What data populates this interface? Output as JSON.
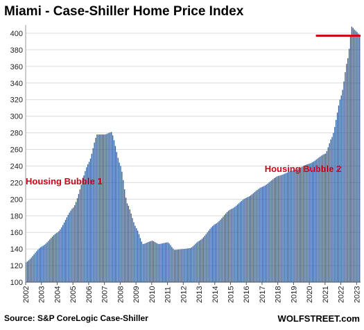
{
  "header": {
    "title": "Miami - Case-Shiller Home Price Index"
  },
  "footer": {
    "source": "Source: S&P CoreLogic Case-Shiller",
    "brand": "WOLFSTREET.com"
  },
  "colors": {
    "bar": "#2e5b96",
    "annotation": "#d0021b",
    "grid": "#dcdcdc"
  },
  "chart_data": {
    "type": "bar",
    "title": "Miami - Case-Shiller Home Price Index",
    "xlabel": "",
    "ylabel": "",
    "ylim": [
      100,
      410
    ],
    "yticks": [
      100,
      120,
      140,
      160,
      180,
      200,
      220,
      240,
      260,
      280,
      300,
      320,
      340,
      360,
      380,
      400
    ],
    "xticks": [
      "2002",
      "2003",
      "2004",
      "2005",
      "2006",
      "2007",
      "2008",
      "2009",
      "2010",
      "2011",
      "2012",
      "2013",
      "2014",
      "2015",
      "2016",
      "2017",
      "2018",
      "2019",
      "2020",
      "2021",
      "2022",
      "2023"
    ],
    "grid": true,
    "anchors": [
      [
        "2002-01",
        124
      ],
      [
        "2003-01",
        143
      ],
      [
        "2004-01",
        160
      ],
      [
        "2005-01",
        190
      ],
      [
        "2006-01",
        245
      ],
      [
        "2006-07",
        278
      ],
      [
        "2007-01",
        278
      ],
      [
        "2007-06",
        281
      ],
      [
        "2008-01",
        240
      ],
      [
        "2008-06",
        195
      ],
      [
        "2009-01",
        165
      ],
      [
        "2009-06",
        146
      ],
      [
        "2010-01",
        150
      ],
      [
        "2010-06",
        146
      ],
      [
        "2011-01",
        148
      ],
      [
        "2011-06",
        139
      ],
      [
        "2012-01",
        140
      ],
      [
        "2012-06",
        141
      ],
      [
        "2013-01",
        150
      ],
      [
        "2014-01",
        170
      ],
      [
        "2015-01",
        188
      ],
      [
        "2016-01",
        202
      ],
      [
        "2017-01",
        215
      ],
      [
        "2018-01",
        228
      ],
      [
        "2019-01",
        235
      ],
      [
        "2020-01",
        243
      ],
      [
        "2021-01",
        255
      ],
      [
        "2021-06",
        275
      ],
      [
        "2022-01",
        325
      ],
      [
        "2022-06",
        370
      ],
      [
        "2022-09",
        408
      ],
      [
        "2022-12",
        403
      ],
      [
        "2023-03",
        398
      ]
    ],
    "annotations": [
      {
        "text": "Housing Bubble 1",
        "x": "2002-01",
        "y": 218
      },
      {
        "text": "Housing Bubble 2",
        "x": "2017-03",
        "y": 233
      }
    ],
    "reference_line": {
      "y": 397,
      "x_start": "2020-06",
      "x_end": "2023-06"
    }
  }
}
